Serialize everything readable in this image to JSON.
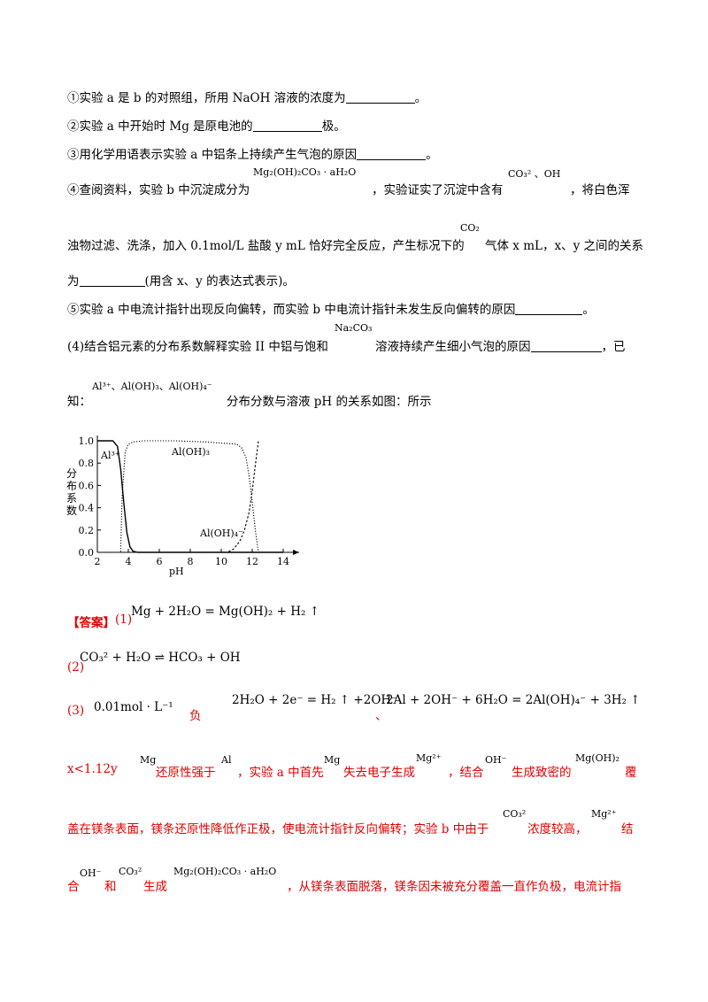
{
  "q1": {
    "text": "①实验 a 是 b 的对照组，所用 NaOH 溶液的浓度为",
    "end": "。"
  },
  "q2": {
    "text": "②实验 a 中开始时 Mg 是原电池的",
    "end": "极。"
  },
  "q3": {
    "text": "③用化学用语表示实验 a 中铝条上持续产生气泡的原因",
    "end": "。"
  },
  "q4": {
    "l1a": "④查阅资料，实验 b 中沉淀成分为",
    "f1": "Mg₂(OH)₂CO₃ · aH₂O",
    "l1b": "，实验证实了沉淀中含有",
    "f2": "CO₃²  、OH",
    "l1c": "，将白色浑",
    "l2a": "浊物过滤、洗涤，加入 0.1mol/L 盐酸 y mL 恰好完全反应，产生标况下的",
    "f3": "CO₂",
    "l2b": "气体 x mL，x、y 之间的关系",
    "l3a": "为",
    "l3b": "(用含 x、y 的表达式表示)。"
  },
  "q5": {
    "text": "⑤实验 a 中电流计指针出现反向偏转，而实验 b 中电流计指针未发生反向偏转的原因",
    "end": "。"
  },
  "p4": {
    "a": "(4)结合铝元素的分布系数解释实验 II 中铝与饱和",
    "f": "Na₂CO₃",
    "b": "溶液持续产生细小气泡的原因",
    "c": "，已",
    "d": "知：",
    "f2": "Al³⁺、Al(OH)₃、Al(OH)₄⁻",
    "e": "分布分数与溶液 pH 的关系如图：所示"
  },
  "chart_data": {
    "type": "line",
    "xlabel": "pH",
    "ylabel": "分布系数",
    "xlim": [
      2,
      14
    ],
    "ylim": [
      0,
      1.0
    ],
    "xticks": [
      "2",
      "4",
      "6",
      "8",
      "10",
      "12",
      "14"
    ],
    "yticks": [
      "0.0",
      "0.2",
      "0.4",
      "0.6",
      "0.8",
      "1.0"
    ],
    "grid": false,
    "series": [
      {
        "name": "Al³⁺",
        "style": "solid",
        "x": [
          2,
          3.0,
          3.3,
          3.5,
          3.7,
          3.9,
          4.1,
          4.3,
          4.6,
          14
        ],
        "y": [
          1.0,
          1.0,
          0.95,
          0.75,
          0.45,
          0.18,
          0.05,
          0.01,
          0.0,
          0.0
        ]
      },
      {
        "name": "Al(OH)₃",
        "style": "dotted",
        "x": [
          2,
          3.5,
          3.6,
          3.8,
          4.0,
          4.3,
          5.0,
          7,
          9,
          11,
          11.3,
          11.6,
          11.8,
          12.0,
          12.2,
          12.4
        ],
        "y": [
          0.0,
          0.0,
          0.5,
          0.9,
          0.97,
          0.99,
          1.0,
          1.0,
          0.99,
          0.97,
          0.94,
          0.85,
          0.68,
          0.45,
          0.2,
          0.0
        ]
      },
      {
        "name": "Al(OH)₄⁻",
        "style": "dashed",
        "x": [
          2,
          10.4,
          10.8,
          11.2,
          11.5,
          11.8,
          12.0,
          12.2,
          12.4
        ],
        "y": [
          0.0,
          0.0,
          0.03,
          0.1,
          0.2,
          0.36,
          0.55,
          0.78,
          1.0
        ]
      }
    ]
  },
  "answer": {
    "label": "【答案】",
    "p1": "(1)",
    "eq1": "Mg + 2H₂O = Mg(OH)₂ + H₂ ↑",
    "p2": "(2)",
    "eq2": "CO₃²  + H₂O ⇌  HCO₃ + OH",
    "p3": "(3)",
    "c3": "0.01mol · L⁻¹",
    "neg": "负",
    "eq3a": "2H₂O + 2e⁻ = H₂ ↑ +2OH⁻",
    "sep": "、",
    "eq3b": "2Al + 2OH⁻ + 6H₂O = 2Al(OH)₄⁻ + 3H₂ ↑",
    "l5": {
      "xy": "x<1.12y",
      "mg1": "Mg",
      "t1": "还原性强于",
      "al": "Al",
      "t2": "，实验 a 中首先",
      "mg2": "Mg",
      "t3": "失去电子生成",
      "mg2p": "Mg²⁺",
      "t4": "，结合",
      "oh": "OH⁻",
      "t5": "生成致密的",
      "mgoh": "Mg(OH)₂",
      "t6": "覆"
    },
    "l6": {
      "t1": "盖在镁条表面，镁条还原性降低作正极，使电流计指针反向偏转；实验 b 中由于",
      "co3": "CO₃²",
      "t2": "浓度较高，",
      "mg2p": "Mg²⁺",
      "t3": "结"
    },
    "l7": {
      "t1": "合",
      "oh": "OH⁻",
      "t2": "和",
      "co3": "CO₃²",
      "t3": "生成",
      "f": "Mg₂(OH)₂CO₃ · aH₂O",
      "t4": "，从镁条表面脱落，镁条因未被充分覆盖一直作负极，电流计指"
    }
  }
}
